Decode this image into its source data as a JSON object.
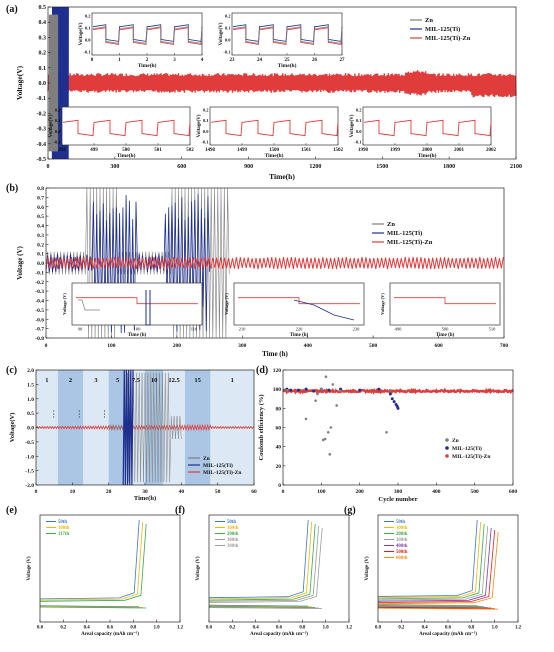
{
  "panel_labels": [
    "(a)",
    "(b)",
    "(c)",
    "(d)",
    "(e)",
    "(f)",
    "(g)"
  ],
  "colors": {
    "zn": "#7f7f7f",
    "mil": "#1f2f8f",
    "milzn": "#e03c3c",
    "panel_c_bg_light": "#dce9f5",
    "panel_c_bg_dark": "#aac6e4",
    "yellow": "#f0b800",
    "green": "#3ca84a",
    "blue_light": "#3a78c8",
    "gray": "#9b9b9b",
    "purple": "#7a3fa0",
    "red": "#e31a1c",
    "orange": "#f08a16"
  },
  "chart_data": [
    {
      "id": "a",
      "type": "line",
      "xlabel": "Time(h)",
      "ylabel": "Voltage(V)",
      "xlim": [
        0,
        2100
      ],
      "ylim": [
        -0.5,
        0.5
      ],
      "xticks": [
        "0",
        "300",
        "600",
        "900",
        "1200",
        "1500",
        "1800",
        "2100"
      ],
      "yticks": [
        "-0.5",
        "-0.4",
        "-0.3",
        "-0.2",
        "-0.1",
        "0.0",
        "0.1",
        "0.2",
        "0.3",
        "0.4",
        "0.5"
      ],
      "series": [
        {
          "name": "Zn",
          "x": [
            0,
            80
          ],
          "y_range": [
            -0.5,
            0.5
          ]
        },
        {
          "name": "MIL-125(Ti)",
          "x": [
            0,
            80
          ],
          "y_range": [
            -0.5,
            0.5
          ]
        },
        {
          "name": "MIL-125(Ti)-Zn",
          "x": [
            0,
            2100
          ],
          "y_range": [
            -0.06,
            0.06
          ]
        }
      ],
      "insets": [
        {
          "xticks": [
            "0",
            "1",
            "2",
            "3",
            "4"
          ],
          "yticks": [
            "0.2",
            "0.1",
            "0.0",
            "-0.1"
          ],
          "xlabel": "Time(h)",
          "ylabel": "Voltage(V)"
        },
        {
          "xticks": [
            "23",
            "24",
            "25",
            "26",
            "27"
          ],
          "yticks": [
            "0.2",
            "0.1",
            "0.0",
            "-0.1"
          ],
          "xlabel": "Time(h)",
          "ylabel": "Voltage(V)"
        },
        {
          "xticks": [
            "498",
            "499",
            "500",
            "501",
            "502"
          ],
          "yticks": [
            "0.2",
            "0.1",
            "0.0",
            "-0.1"
          ],
          "xlabel": "Time(h)",
          "ylabel": "Voltage(V)"
        },
        {
          "xticks": [
            "1498",
            "1499",
            "1500",
            "1501",
            "1502"
          ],
          "yticks": [
            "0.2",
            "0.1",
            "0.0",
            "-0.1"
          ],
          "xlabel": "Time(h)",
          "ylabel": "Voltage(V)"
        },
        {
          "xticks": [
            "1998",
            "1999",
            "2000",
            "2001",
            "2002"
          ],
          "yticks": [
            "0.2",
            "0.1",
            "0.0",
            "-0.1"
          ],
          "xlabel": "Time(h)",
          "ylabel": "Voltage(V)"
        }
      ]
    },
    {
      "id": "b",
      "type": "line",
      "xlabel": "Time (h)",
      "ylabel": "Voltage (V)",
      "xlim": [
        0,
        700
      ],
      "ylim": [
        -0.8,
        0.8
      ],
      "xticks": [
        "0",
        "100",
        "200",
        "300",
        "400",
        "500",
        "600",
        "700"
      ],
      "yticks": [
        "-0.8",
        "-0.7",
        "-0.6",
        "-0.5",
        "-0.4",
        "-0.3",
        "-0.2",
        "-0.1",
        "0.0",
        "0.1",
        "0.2",
        "0.3",
        "0.4",
        "0.5",
        "0.6",
        "0.7",
        "0.8"
      ],
      "series": [
        {
          "name": "Zn",
          "x": [
            0,
            280
          ],
          "y_range": [
            -0.8,
            0.8
          ]
        },
        {
          "name": "MIL-125(Ti)",
          "x": [
            0,
            250
          ],
          "y_range": [
            -0.8,
            0.8
          ]
        },
        {
          "name": "MIL-125(Ti)-Zn",
          "x": [
            0,
            700
          ],
          "y_range": [
            -0.06,
            0.06
          ]
        }
      ],
      "insets": [
        {
          "xticks": [
            "90",
            "100",
            "110"
          ],
          "xlabel": "Time (h)",
          "ylabel": "Voltage (V)"
        },
        {
          "xticks": [
            "210",
            "220",
            "230"
          ],
          "xlabel": "Time (h)",
          "ylabel": "Voltage (V)"
        },
        {
          "xticks": [
            "490",
            "500",
            "510"
          ],
          "xlabel": "Time (h)",
          "ylabel": "Voltage (V)"
        }
      ]
    },
    {
      "id": "c",
      "type": "line",
      "xlabel": "Time(h)",
      "ylabel": "Voltage(V)",
      "xlim": [
        0,
        60
      ],
      "ylim": [
        -2.0,
        2.0
      ],
      "xticks": [
        "0",
        "10",
        "20",
        "30",
        "40",
        "50",
        "60"
      ],
      "yticks": [
        "-2.0",
        "-1.5",
        "-1.0",
        "-0.5",
        "0.0",
        "0.5",
        "1.0",
        "1.5",
        "2.0"
      ],
      "current_densities": [
        "1",
        "2",
        "3",
        "5",
        "7.5",
        "10",
        "12.5",
        "15",
        "1"
      ],
      "segments_x": [
        0,
        6,
        13,
        20,
        25,
        30,
        35,
        41,
        48,
        60
      ],
      "series": [
        {
          "name": "Zn"
        },
        {
          "name": "MIL-125(Ti)"
        },
        {
          "name": "MIL-125(Ti)-Zn"
        }
      ]
    },
    {
      "id": "d",
      "type": "scatter",
      "xlabel": "Cycle number",
      "ylabel": "Coulomb efficiency (%)",
      "xlim": [
        0,
        600
      ],
      "ylim": [
        0,
        120
      ],
      "xticks": [
        "0",
        "100",
        "200",
        "300",
        "400",
        "500",
        "600"
      ],
      "yticks": [
        "0",
        "20",
        "40",
        "60",
        "80",
        "100",
        "120"
      ],
      "series": [
        {
          "name": "Zn",
          "points": [
            [
              10,
              99
            ],
            [
              60,
              69
            ],
            [
              85,
              88
            ],
            [
              90,
              95
            ],
            [
              100,
              100
            ],
            [
              105,
              47
            ],
            [
              110,
              48
            ],
            [
              112,
              113
            ],
            [
              118,
              55
            ],
            [
              122,
              32
            ],
            [
              125,
              60
            ],
            [
              130,
              105
            ],
            [
              140,
              83
            ],
            [
              150,
              98
            ],
            [
              270,
              55
            ],
            [
              280,
              99
            ]
          ]
        },
        {
          "name": "MIL-125(Ti)",
          "points": [
            [
              10,
              100
            ],
            [
              20,
              99
            ],
            [
              40,
              99
            ],
            [
              60,
              100
            ],
            [
              80,
              98
            ],
            [
              100,
              100
            ],
            [
              120,
              99
            ],
            [
              150,
              100
            ],
            [
              200,
              99
            ],
            [
              250,
              100
            ],
            [
              280,
              95
            ],
            [
              285,
              90
            ],
            [
              290,
              87
            ],
            [
              295,
              84
            ],
            [
              298,
              82
            ],
            [
              300,
              80
            ]
          ]
        },
        {
          "name": "MIL-125(Ti)-Zn",
          "x_range": [
            0,
            600
          ],
          "y_mean": 98
        }
      ]
    },
    {
      "id": "e",
      "type": "line",
      "xlabel": "Areal capacity (mAh cm⁻²)",
      "ylabel": "Voltage (V)",
      "xlim": [
        0,
        1.2
      ],
      "xticks": [
        "0.0",
        "0.2",
        "0.4",
        "0.6",
        "0.8",
        "1.0",
        "1.2"
      ],
      "series": [
        {
          "name": "50th"
        },
        {
          "name": "100th"
        },
        {
          "name": "117th"
        }
      ]
    },
    {
      "id": "f",
      "type": "line",
      "xlabel": "Areal capacity (mAh cm⁻²)",
      "ylabel": "Voltage (V)",
      "xlim": [
        0,
        1.2
      ],
      "xticks": [
        "0.0",
        "0.2",
        "0.4",
        "0.6",
        "0.8",
        "1.0",
        "1.2"
      ],
      "series": [
        {
          "name": "50th"
        },
        {
          "name": "100th"
        },
        {
          "name": "200th"
        },
        {
          "name": "300th"
        },
        {
          "name": "380th"
        }
      ]
    },
    {
      "id": "g",
      "type": "line",
      "xlabel": "Areal capacity (mAh cm⁻²)",
      "ylabel": "Voltage (V)",
      "xlim": [
        0,
        1.2
      ],
      "xticks": [
        "0.0",
        "0.2",
        "0.4",
        "0.6",
        "0.8",
        "1.0",
        "1.2"
      ],
      "series": [
        {
          "name": "50th"
        },
        {
          "name": "100th"
        },
        {
          "name": "200th"
        },
        {
          "name": "300th"
        },
        {
          "name": "400th"
        },
        {
          "name": "500th"
        },
        {
          "name": "600th"
        }
      ]
    }
  ]
}
